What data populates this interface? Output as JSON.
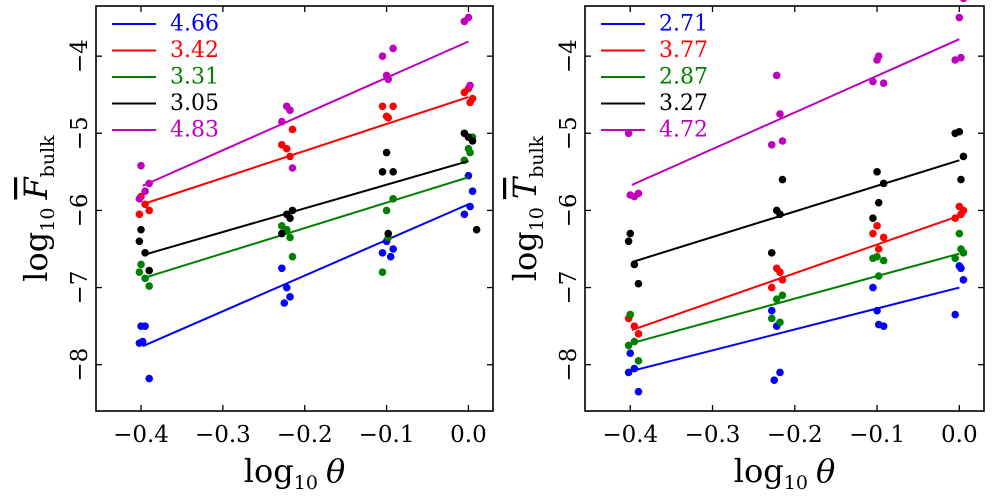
{
  "chart_data": [
    {
      "type": "scatter",
      "id": "left",
      "xlabel": "log10 θ",
      "ylabel": "log10 F̄bulk",
      "ylabel_main": "log",
      "ylabel_base": "10",
      "ylabel_symbol": "F",
      "ylabel_sub": "bulk",
      "xlim": [
        -0.455,
        0.03
      ],
      "ylim": [
        -8.6,
        -3.35
      ],
      "xticks": [
        -0.4,
        -0.3,
        -0.2,
        -0.1,
        0.0
      ],
      "xtick_labels": [
        "−0.4",
        "−0.3",
        "−0.2",
        "−0.1",
        "0.0"
      ],
      "yticks": [
        -8,
        -7,
        -6,
        -5,
        -4
      ],
      "ytick_labels": [
        "−8",
        "−7",
        "−6",
        "−5",
        "−4"
      ],
      "legend_position": "top-left",
      "series": [
        {
          "name": "4.66",
          "color": "#0000ff",
          "line": [
            [
              -0.398,
              -7.76
            ],
            [
              0.0,
              -5.92
            ]
          ],
          "points": [
            [
              -0.4,
              -7.5
            ],
            [
              -0.395,
              -7.5
            ],
            [
              -0.398,
              -7.7
            ],
            [
              -0.402,
              -7.72
            ],
            [
              -0.39,
              -8.18
            ],
            [
              -0.222,
              -7.0
            ],
            [
              -0.218,
              -7.12
            ],
            [
              -0.225,
              -7.2
            ],
            [
              -0.228,
              -6.75
            ],
            [
              -0.1,
              -6.4
            ],
            [
              -0.092,
              -6.5
            ],
            [
              -0.095,
              -6.6
            ],
            [
              -0.105,
              -6.55
            ],
            [
              0.0,
              -5.55
            ],
            [
              0.005,
              -5.75
            ],
            [
              -0.005,
              -6.05
            ],
            [
              0.002,
              -5.95
            ]
          ]
        },
        {
          "name": "3.42",
          "color": "#ff0000",
          "line": [
            [
              -0.398,
              -5.92
            ],
            [
              0.0,
              -4.53
            ]
          ],
          "points": [
            [
              -0.4,
              -5.82
            ],
            [
              -0.395,
              -5.92
            ],
            [
              -0.402,
              -6.05
            ],
            [
              -0.39,
              -6.0
            ],
            [
              -0.222,
              -5.2
            ],
            [
              -0.218,
              -5.3
            ],
            [
              -0.228,
              -5.15
            ],
            [
              -0.215,
              -4.95
            ],
            [
              -0.1,
              -4.78
            ],
            [
              -0.092,
              -4.65
            ],
            [
              -0.105,
              -4.65
            ],
            [
              -0.098,
              -4.8
            ],
            [
              0.0,
              -4.42
            ],
            [
              0.005,
              -4.55
            ],
            [
              -0.005,
              -4.47
            ],
            [
              0.002,
              -4.6
            ]
          ]
        },
        {
          "name": "3.31",
          "color": "#008000",
          "line": [
            [
              -0.398,
              -6.88
            ],
            [
              0.0,
              -5.57
            ]
          ],
          "points": [
            [
              -0.4,
              -6.7
            ],
            [
              -0.395,
              -6.88
            ],
            [
              -0.39,
              -6.98
            ],
            [
              -0.402,
              -6.8
            ],
            [
              -0.222,
              -6.25
            ],
            [
              -0.218,
              -6.35
            ],
            [
              -0.215,
              -6.6
            ],
            [
              -0.228,
              -6.2
            ],
            [
              -0.1,
              -6.0
            ],
            [
              -0.092,
              -5.85
            ],
            [
              -0.105,
              -6.8
            ],
            [
              -0.098,
              -6.35
            ],
            [
              0.0,
              -5.2
            ],
            [
              0.005,
              -5.05
            ],
            [
              -0.005,
              -5.35
            ],
            [
              0.002,
              -5.25
            ]
          ]
        },
        {
          "name": "3.05",
          "color": "#000000",
          "line": [
            [
              -0.398,
              -6.58
            ],
            [
              0.0,
              -5.36
            ]
          ],
          "points": [
            [
              -0.4,
              -6.25
            ],
            [
              -0.395,
              -6.55
            ],
            [
              -0.402,
              -6.4
            ],
            [
              -0.39,
              -6.78
            ],
            [
              -0.222,
              -6.05
            ],
            [
              -0.218,
              -6.1
            ],
            [
              -0.228,
              -6.3
            ],
            [
              -0.215,
              -6.0
            ],
            [
              -0.1,
              -5.25
            ],
            [
              -0.092,
              -5.5
            ],
            [
              -0.105,
              -5.5
            ],
            [
              -0.098,
              -6.3
            ],
            [
              0.0,
              -5.05
            ],
            [
              0.005,
              -5.1
            ],
            [
              -0.005,
              -5.0
            ],
            [
              0.01,
              -6.25
            ]
          ]
        },
        {
          "name": "4.83",
          "color": "#bf00bf",
          "line": [
            [
              -0.398,
              -5.68
            ],
            [
              0.0,
              -3.81
            ]
          ],
          "points": [
            [
              -0.4,
              -5.42
            ],
            [
              -0.395,
              -5.75
            ],
            [
              -0.402,
              -5.85
            ],
            [
              -0.39,
              -5.65
            ],
            [
              -0.222,
              -4.65
            ],
            [
              -0.218,
              -4.7
            ],
            [
              -0.228,
              -4.85
            ],
            [
              -0.215,
              -5.45
            ],
            [
              -0.1,
              -4.25
            ],
            [
              -0.092,
              -3.9
            ],
            [
              -0.105,
              -4.0
            ],
            [
              -0.098,
              -4.3
            ],
            [
              0.0,
              -3.5
            ],
            [
              0.005,
              -3.2
            ],
            [
              -0.005,
              -3.55
            ],
            [
              0.002,
              -4.38
            ]
          ]
        }
      ]
    },
    {
      "type": "scatter",
      "id": "right",
      "xlabel": "log10 θ",
      "ylabel": "log10 T̄bulk",
      "ylabel_main": "log",
      "ylabel_base": "10",
      "ylabel_symbol": "T",
      "ylabel_sub": "bulk",
      "xlim": [
        -0.455,
        0.03
      ],
      "ylim": [
        -8.6,
        -3.35
      ],
      "xticks": [
        -0.4,
        -0.3,
        -0.2,
        -0.1,
        0.0
      ],
      "xtick_labels": [
        "−0.4",
        "−0.3",
        "−0.2",
        "−0.1",
        "0.0"
      ],
      "yticks": [
        -8,
        -7,
        -6,
        -5,
        -4
      ],
      "ytick_labels": [
        "−8",
        "−7",
        "−6",
        "−5",
        "−4"
      ],
      "legend_position": "top-left",
      "series": [
        {
          "name": "2.71",
          "color": "#0000ff",
          "line": [
            [
              -0.398,
              -8.08
            ],
            [
              0.0,
              -7.0
            ]
          ],
          "points": [
            [
              -0.4,
              -7.85
            ],
            [
              -0.395,
              -8.05
            ],
            [
              -0.402,
              -8.1
            ],
            [
              -0.39,
              -8.35
            ],
            [
              -0.222,
              -7.5
            ],
            [
              -0.218,
              -8.1
            ],
            [
              -0.225,
              -8.2
            ],
            [
              -0.228,
              -7.3
            ],
            [
              -0.1,
              -7.3
            ],
            [
              -0.092,
              -7.5
            ],
            [
              -0.098,
              -7.48
            ],
            [
              -0.105,
              -7.0
            ],
            [
              0.0,
              -6.72
            ],
            [
              0.005,
              -6.9
            ],
            [
              -0.005,
              -7.35
            ],
            [
              0.002,
              -6.75
            ]
          ]
        },
        {
          "name": "3.77",
          "color": "#ff0000",
          "line": [
            [
              -0.398,
              -7.55
            ],
            [
              0.0,
              -6.07
            ]
          ],
          "points": [
            [
              -0.4,
              -7.35
            ],
            [
              -0.395,
              -7.5
            ],
            [
              -0.402,
              -7.4
            ],
            [
              -0.39,
              -7.6
            ],
            [
              -0.222,
              -6.75
            ],
            [
              -0.218,
              -6.8
            ],
            [
              -0.228,
              -7.0
            ],
            [
              -0.215,
              -6.9
            ],
            [
              -0.1,
              -6.2
            ],
            [
              -0.092,
              -6.35
            ],
            [
              -0.105,
              -6.3
            ],
            [
              -0.098,
              -6.5
            ],
            [
              0.0,
              -5.95
            ],
            [
              0.005,
              -6.0
            ],
            [
              -0.005,
              -6.1
            ],
            [
              0.002,
              -6.05
            ]
          ]
        },
        {
          "name": "2.87",
          "color": "#008000",
          "line": [
            [
              -0.398,
              -7.72
            ],
            [
              0.0,
              -6.56
            ]
          ],
          "points": [
            [
              -0.4,
              -7.35
            ],
            [
              -0.395,
              -7.7
            ],
            [
              -0.402,
              -7.75
            ],
            [
              -0.39,
              -7.95
            ],
            [
              -0.222,
              -7.15
            ],
            [
              -0.218,
              -7.45
            ],
            [
              -0.228,
              -7.4
            ],
            [
              -0.215,
              -7.1
            ],
            [
              -0.1,
              -6.6
            ],
            [
              -0.092,
              -6.65
            ],
            [
              -0.105,
              -6.62
            ],
            [
              -0.098,
              -6.85
            ],
            [
              0.0,
              -6.3
            ],
            [
              0.005,
              -6.55
            ],
            [
              -0.005,
              -6.62
            ],
            [
              0.002,
              -6.5
            ]
          ]
        },
        {
          "name": "3.27",
          "color": "#000000",
          "line": [
            [
              -0.398,
              -6.67
            ],
            [
              0.0,
              -5.35
            ]
          ],
          "points": [
            [
              -0.4,
              -6.3
            ],
            [
              -0.395,
              -6.7
            ],
            [
              -0.402,
              -6.4
            ],
            [
              -0.39,
              -6.95
            ],
            [
              -0.222,
              -6.0
            ],
            [
              -0.218,
              -6.05
            ],
            [
              -0.228,
              -6.55
            ],
            [
              -0.215,
              -5.6
            ],
            [
              -0.1,
              -5.5
            ],
            [
              -0.092,
              -5.65
            ],
            [
              -0.098,
              -5.9
            ],
            [
              -0.105,
              -6.1
            ],
            [
              0.0,
              -4.98
            ],
            [
              0.005,
              -5.3
            ],
            [
              -0.005,
              -5.0
            ],
            [
              0.002,
              -5.6
            ]
          ]
        },
        {
          "name": "4.72",
          "color": "#bf00bf",
          "line": [
            [
              -0.398,
              -5.67
            ],
            [
              0.0,
              -3.78
            ]
          ],
          "points": [
            [
              -0.4,
              -5.8
            ],
            [
              -0.395,
              -5.82
            ],
            [
              -0.402,
              -5.0
            ],
            [
              -0.39,
              -5.78
            ],
            [
              -0.222,
              -4.25
            ],
            [
              -0.218,
              -4.75
            ],
            [
              -0.228,
              -5.15
            ],
            [
              -0.215,
              -5.1
            ],
            [
              -0.1,
              -4.05
            ],
            [
              -0.092,
              -4.35
            ],
            [
              -0.098,
              -4.0
            ],
            [
              -0.105,
              -4.33
            ],
            [
              0.0,
              -3.5
            ],
            [
              0.005,
              -3.25
            ],
            [
              -0.005,
              -4.05
            ],
            [
              0.002,
              -4.02
            ]
          ]
        }
      ]
    }
  ]
}
